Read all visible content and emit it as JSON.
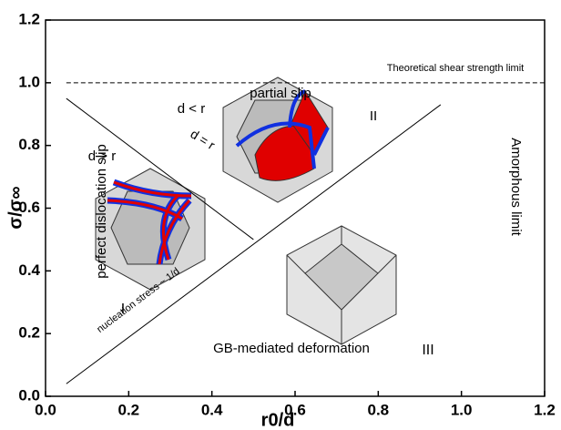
{
  "chart_data": {
    "type": "line",
    "xlabel": "r0/d",
    "ylabel": "σ/σ∞",
    "xlim": [
      0,
      1.2
    ],
    "ylim": [
      0,
      1.2
    ],
    "xticks": [
      {
        "value": 0,
        "label": "0.0"
      },
      0.2,
      0.4,
      0.6,
      0.8,
      {
        "value": 1,
        "label": "1.0"
      },
      1.2
    ],
    "yticks": [
      {
        "value": 0,
        "label": "0.0"
      },
      0.2,
      0.4,
      0.6,
      0.8,
      {
        "value": 1,
        "label": "1.0"
      },
      1.2
    ],
    "series": [
      {
        "color": "#000000",
        "dashed": true,
        "x": [
          0.05,
          1.2
        ],
        "values": [
          1.0,
          1.0
        ]
      },
      {
        "color": "#000000",
        "dashed": false,
        "x": [
          0.05,
          0.5
        ],
        "values": [
          0.95,
          0.5
        ]
      },
      {
        "color": "#000000",
        "dashed": false,
        "x": [
          0.05,
          0.95
        ],
        "values": [
          0.04,
          0.93
        ]
      }
    ],
    "annotations": [
      "Theoretical shear strength limit",
      "partial slip",
      "d < r",
      "d = r",
      "II",
      "d > r",
      "perfect dislocation slip",
      "Amorphous limit",
      "nucleation stress ~ 1/d",
      "I",
      "III",
      "GB-mediated deformation"
    ]
  }
}
